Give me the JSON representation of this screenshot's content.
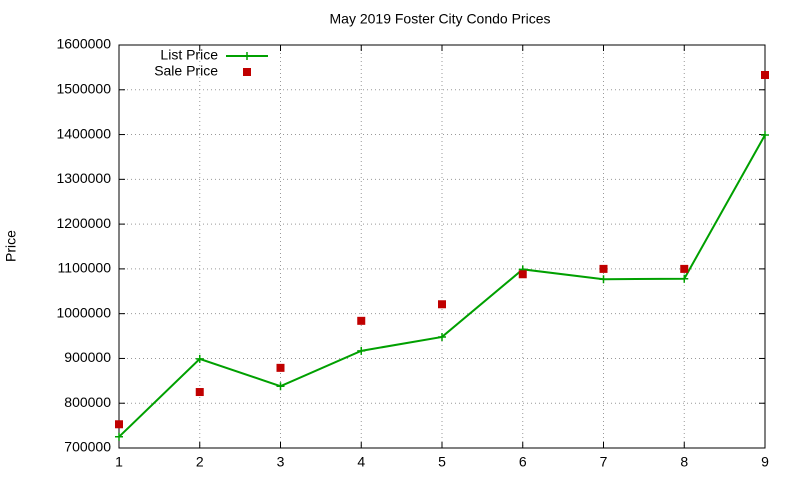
{
  "chart_data": {
    "type": "line",
    "title": "May 2019 Foster City Condo Prices",
    "y_label": "Price",
    "x": [
      1,
      2,
      3,
      4,
      5,
      6,
      7,
      8,
      9
    ],
    "series": [
      {
        "name": "List Price",
        "color": "#00a000",
        "style": "linespoints",
        "values": [
          725000,
          899000,
          838000,
          917000,
          948000,
          1099000,
          1077000,
          1078000,
          1399000
        ]
      },
      {
        "name": "Sale Price",
        "color": "#c00000",
        "style": "points",
        "values": [
          753000,
          825000,
          879000,
          984000,
          1021000,
          1088000,
          1100000,
          1100000,
          1533000
        ]
      }
    ],
    "xlim": [
      1,
      9
    ],
    "xticks": [
      1,
      2,
      3,
      4,
      5,
      6,
      7,
      8,
      9
    ],
    "ylim": [
      700000,
      1600000
    ],
    "yticks": [
      700000,
      800000,
      900000,
      1000000,
      1100000,
      1200000,
      1300000,
      1400000,
      1500000,
      1600000
    ],
    "grid": true,
    "legend": "top-left"
  }
}
